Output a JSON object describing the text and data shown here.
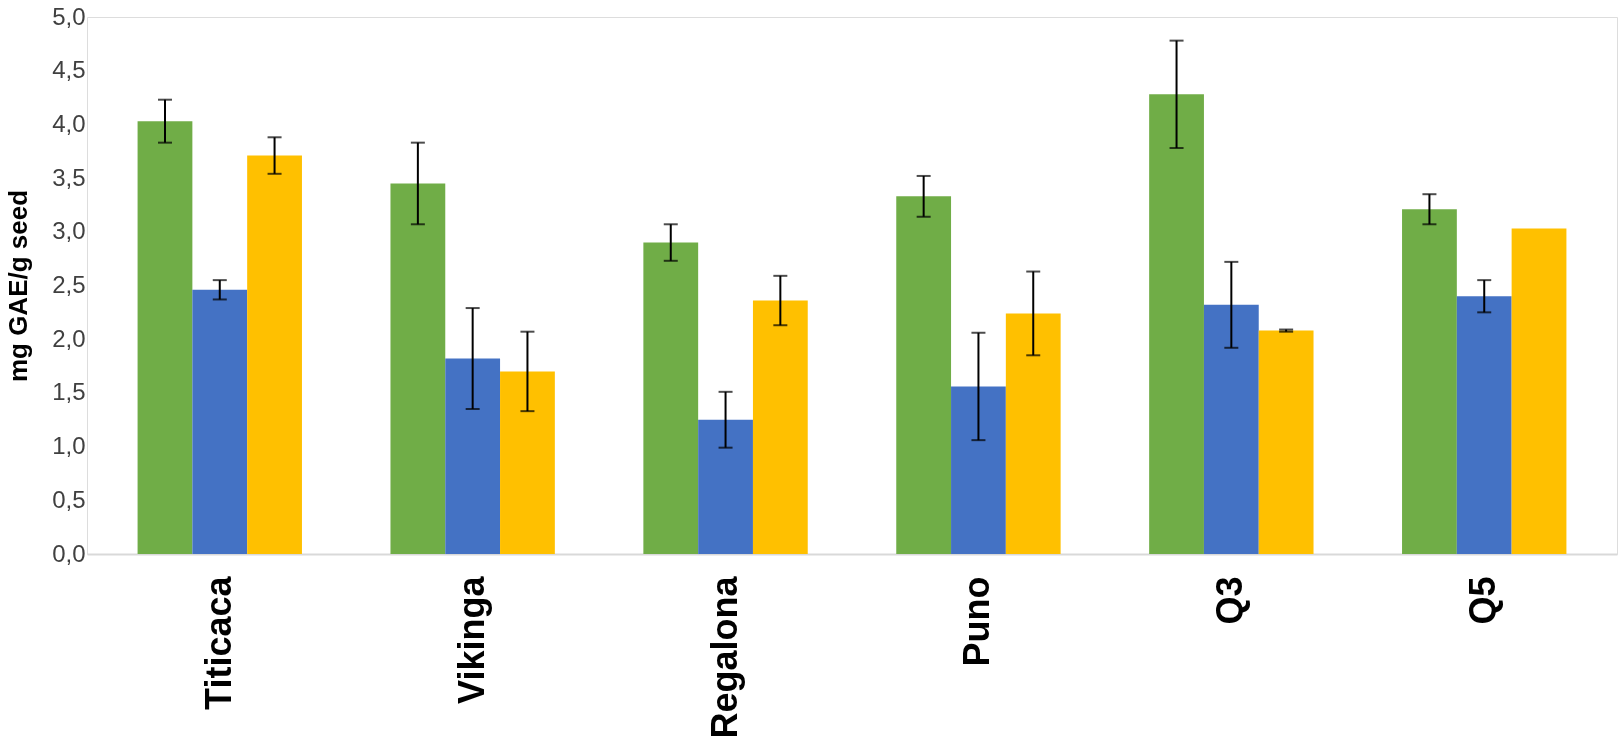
{
  "chart_data": {
    "type": "bar",
    "ylabel": "mg GAE/g seed",
    "categories": [
      "Titicaca",
      "Vikinga",
      "Regalona",
      "Puno",
      "Q3",
      "Q5"
    ],
    "series": [
      {
        "color": "#70ad47",
        "values": [
          4.03,
          3.45,
          2.9,
          3.33,
          4.28,
          3.21
        ],
        "errors": [
          0.2,
          0.38,
          0.17,
          0.19,
          0.5,
          0.14
        ]
      },
      {
        "color": "#4472c4",
        "values": [
          2.46,
          1.82,
          1.25,
          1.56,
          2.32,
          2.4
        ],
        "errors": [
          0.09,
          0.47,
          0.26,
          0.5,
          0.4,
          0.15
        ]
      },
      {
        "color": "#ffc000",
        "values": [
          3.71,
          1.7,
          2.36,
          2.24,
          2.08,
          3.03
        ],
        "errors": [
          0.17,
          0.37,
          0.23,
          0.39,
          0.01,
          null
        ]
      }
    ],
    "ylim": [
      0,
      5
    ],
    "yticks": [
      {
        "value": 0,
        "label": "0,0"
      },
      {
        "value": 0.5,
        "label": "0,5"
      },
      {
        "value": 1,
        "label": "1,0"
      },
      {
        "value": 1.5,
        "label": "1,5"
      },
      {
        "value": 2,
        "label": "2,0"
      },
      {
        "value": 2.5,
        "label": "2,5"
      },
      {
        "value": 3,
        "label": "3,0"
      },
      {
        "value": 3.5,
        "label": "3,5"
      },
      {
        "value": 4,
        "label": "4,0"
      },
      {
        "value": 4.5,
        "label": "4,5"
      },
      {
        "value": 5,
        "label": "5,0"
      }
    ],
    "grid": false,
    "legend": false
  }
}
